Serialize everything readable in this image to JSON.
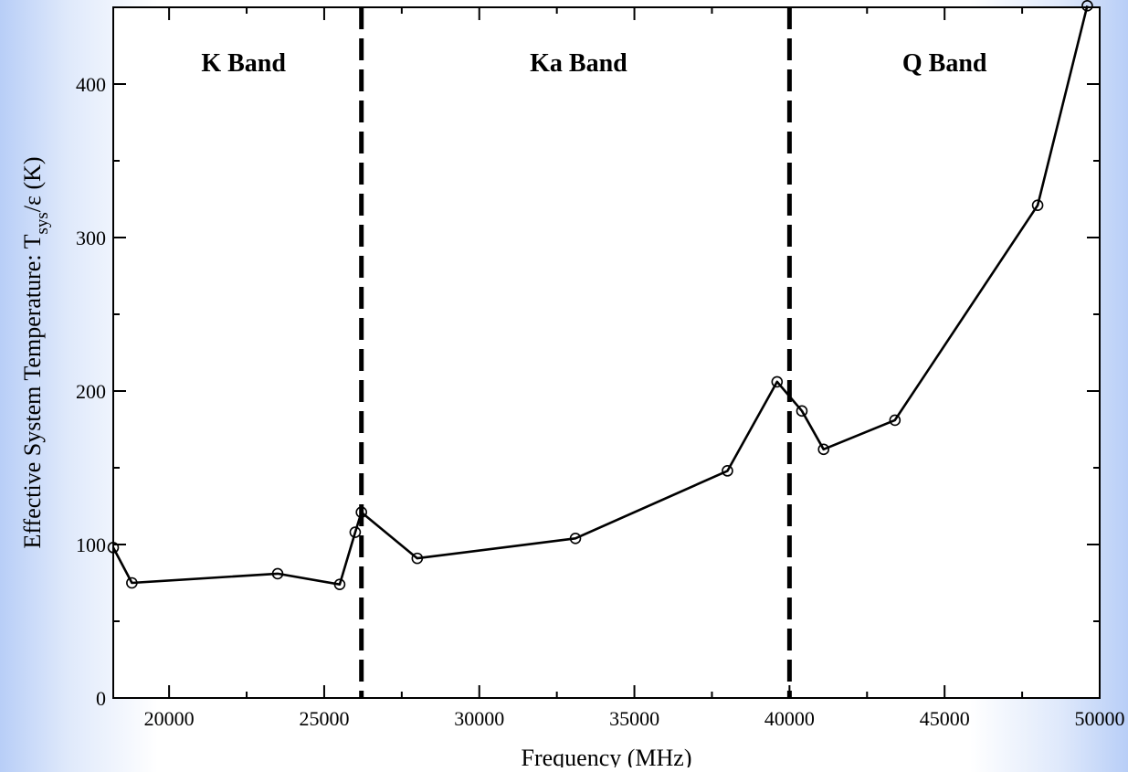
{
  "chart_data": {
    "type": "line",
    "title": "",
    "xlabel": "Frequency (MHz)",
    "ylabel": {
      "prefix": "Effective System Temperature:  T",
      "subscript": "sys",
      "suffix": "/ε   (K)"
    },
    "xlim": [
      18200,
      50000
    ],
    "ylim": [
      0,
      450
    ],
    "x_ticks": [
      20000,
      25000,
      30000,
      35000,
      40000,
      45000,
      50000
    ],
    "x_tick_labels": [
      "20000",
      "25000",
      "30000",
      "35000",
      "40000",
      "45000",
      "50000"
    ],
    "y_ticks": [
      0,
      100,
      200,
      300,
      400
    ],
    "y_tick_labels": [
      "0",
      "100",
      "200",
      "300",
      "400"
    ],
    "grid": false,
    "series": [
      {
        "marker": "open-circle",
        "color": "#000000",
        "x": [
          18200,
          18800,
          23500,
          25500,
          26000,
          26200,
          28000,
          33100,
          38000,
          39600,
          40400,
          41100,
          43400,
          48000,
          49600
        ],
        "y": [
          98,
          75,
          81,
          74,
          108,
          121,
          91,
          104,
          148,
          206,
          187,
          162,
          181,
          321,
          451
        ]
      }
    ],
    "band_dividers": [
      26200,
      40000
    ],
    "bands": [
      {
        "label": "K Band",
        "x": 22400
      },
      {
        "label": "Ka Band",
        "x": 33200
      },
      {
        "label": "Q Band",
        "x": 45000
      }
    ]
  }
}
